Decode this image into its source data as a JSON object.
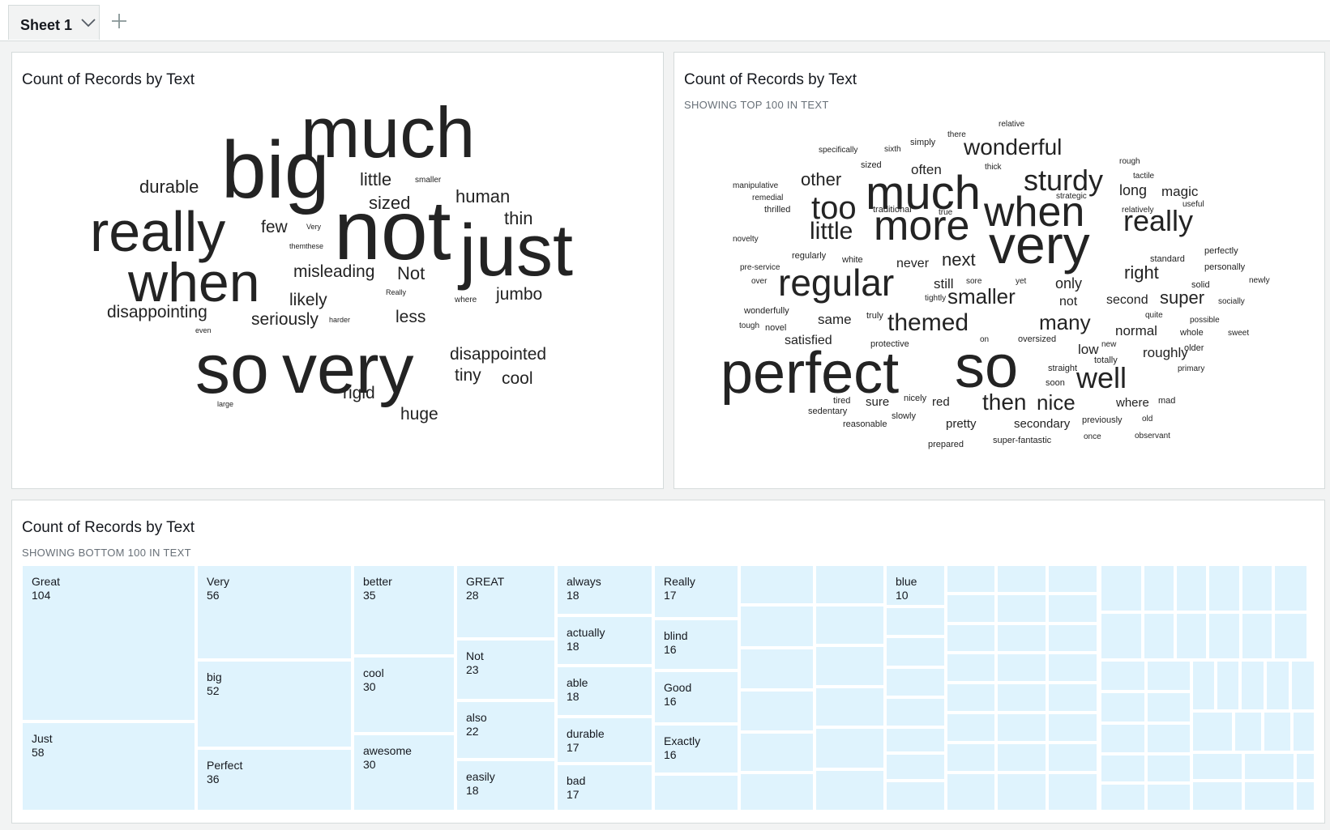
{
  "tabs": {
    "sheet_label": "Sheet 1"
  },
  "colors": {
    "treemap_fill": "#dff3fd",
    "word_color": "#232323",
    "accent": "#0073bb"
  },
  "panel1": {
    "title": "Count of Records by Text",
    "words": [
      "much",
      "big",
      "really",
      "not",
      "just",
      "when",
      "so",
      "very",
      "durable",
      "little",
      "smaller",
      "human",
      "sized",
      "thin",
      "few",
      "Very",
      "themthese",
      "misleading",
      "Not",
      "Really",
      "likely",
      "where",
      "jumbo",
      "disappointing",
      "seriously",
      "harder",
      "less",
      "even",
      "disappointed",
      "tiny",
      "cool",
      "rigid",
      "large",
      "huge"
    ]
  },
  "panel2": {
    "title": "Count of Records by Text",
    "subtitle": "SHOWING TOP 100 IN TEXT",
    "words": [
      "relative",
      "there",
      "simply",
      "specifically",
      "sixth",
      "wonderful",
      "rough",
      "sized",
      "often",
      "thick",
      "manipulative",
      "other",
      "much",
      "sturdy",
      "tactile",
      "long",
      "magic",
      "remedial",
      "strategic",
      "useful",
      "too",
      "thrilled",
      "traditional",
      "when",
      "relatively",
      "true",
      "really",
      "little",
      "more",
      "novelty",
      "very",
      "regularly",
      "white",
      "perfectly",
      "pre-service",
      "next",
      "standard",
      "never",
      "personally",
      "right",
      "over",
      "regular",
      "still",
      "sore",
      "yet",
      "only",
      "solid",
      "newly",
      "tightly",
      "smaller",
      "super",
      "wonderfully",
      "not",
      "second",
      "socially",
      "truly",
      "quite",
      "same",
      "themed",
      "many",
      "tough",
      "novel",
      "possible",
      "normal",
      "whole",
      "sweet",
      "satisfied",
      "on",
      "oversized",
      "protective",
      "new",
      "low",
      "older",
      "roughly",
      "perfect",
      "so",
      "totally",
      "straight",
      "primary",
      "well",
      "soon",
      "nicely",
      "sure",
      "red",
      "where",
      "mad",
      "tired",
      "then",
      "nice",
      "sedentary",
      "slowly",
      "pretty",
      "previously",
      "old",
      "reasonable",
      "secondary",
      "once",
      "observant",
      "prepared",
      "super-fantastic"
    ]
  },
  "panel3": {
    "title": "Count of Records by Text",
    "subtitle": "SHOWING BOTTOM 100 IN TEXT",
    "cells": [
      {
        "name": "Great",
        "value": "104"
      },
      {
        "name": "Just",
        "value": "58"
      },
      {
        "name": "Very",
        "value": "56"
      },
      {
        "name": "big",
        "value": "52"
      },
      {
        "name": "Perfect",
        "value": "36"
      },
      {
        "name": "better",
        "value": "35"
      },
      {
        "name": "cool",
        "value": "30"
      },
      {
        "name": "awesome",
        "value": "30"
      },
      {
        "name": "GREAT",
        "value": "28"
      },
      {
        "name": "Not",
        "value": "23"
      },
      {
        "name": "also",
        "value": "22"
      },
      {
        "name": "easily",
        "value": "18"
      },
      {
        "name": "always",
        "value": "18"
      },
      {
        "name": "actually",
        "value": "18"
      },
      {
        "name": "able",
        "value": "18"
      },
      {
        "name": "durable",
        "value": "17"
      },
      {
        "name": "bad",
        "value": "17"
      },
      {
        "name": "Really",
        "value": "17"
      },
      {
        "name": "blind",
        "value": "16"
      },
      {
        "name": "Good",
        "value": "16"
      },
      {
        "name": "Exactly",
        "value": "16"
      },
      {
        "name": "blue",
        "value": "10"
      }
    ]
  }
}
